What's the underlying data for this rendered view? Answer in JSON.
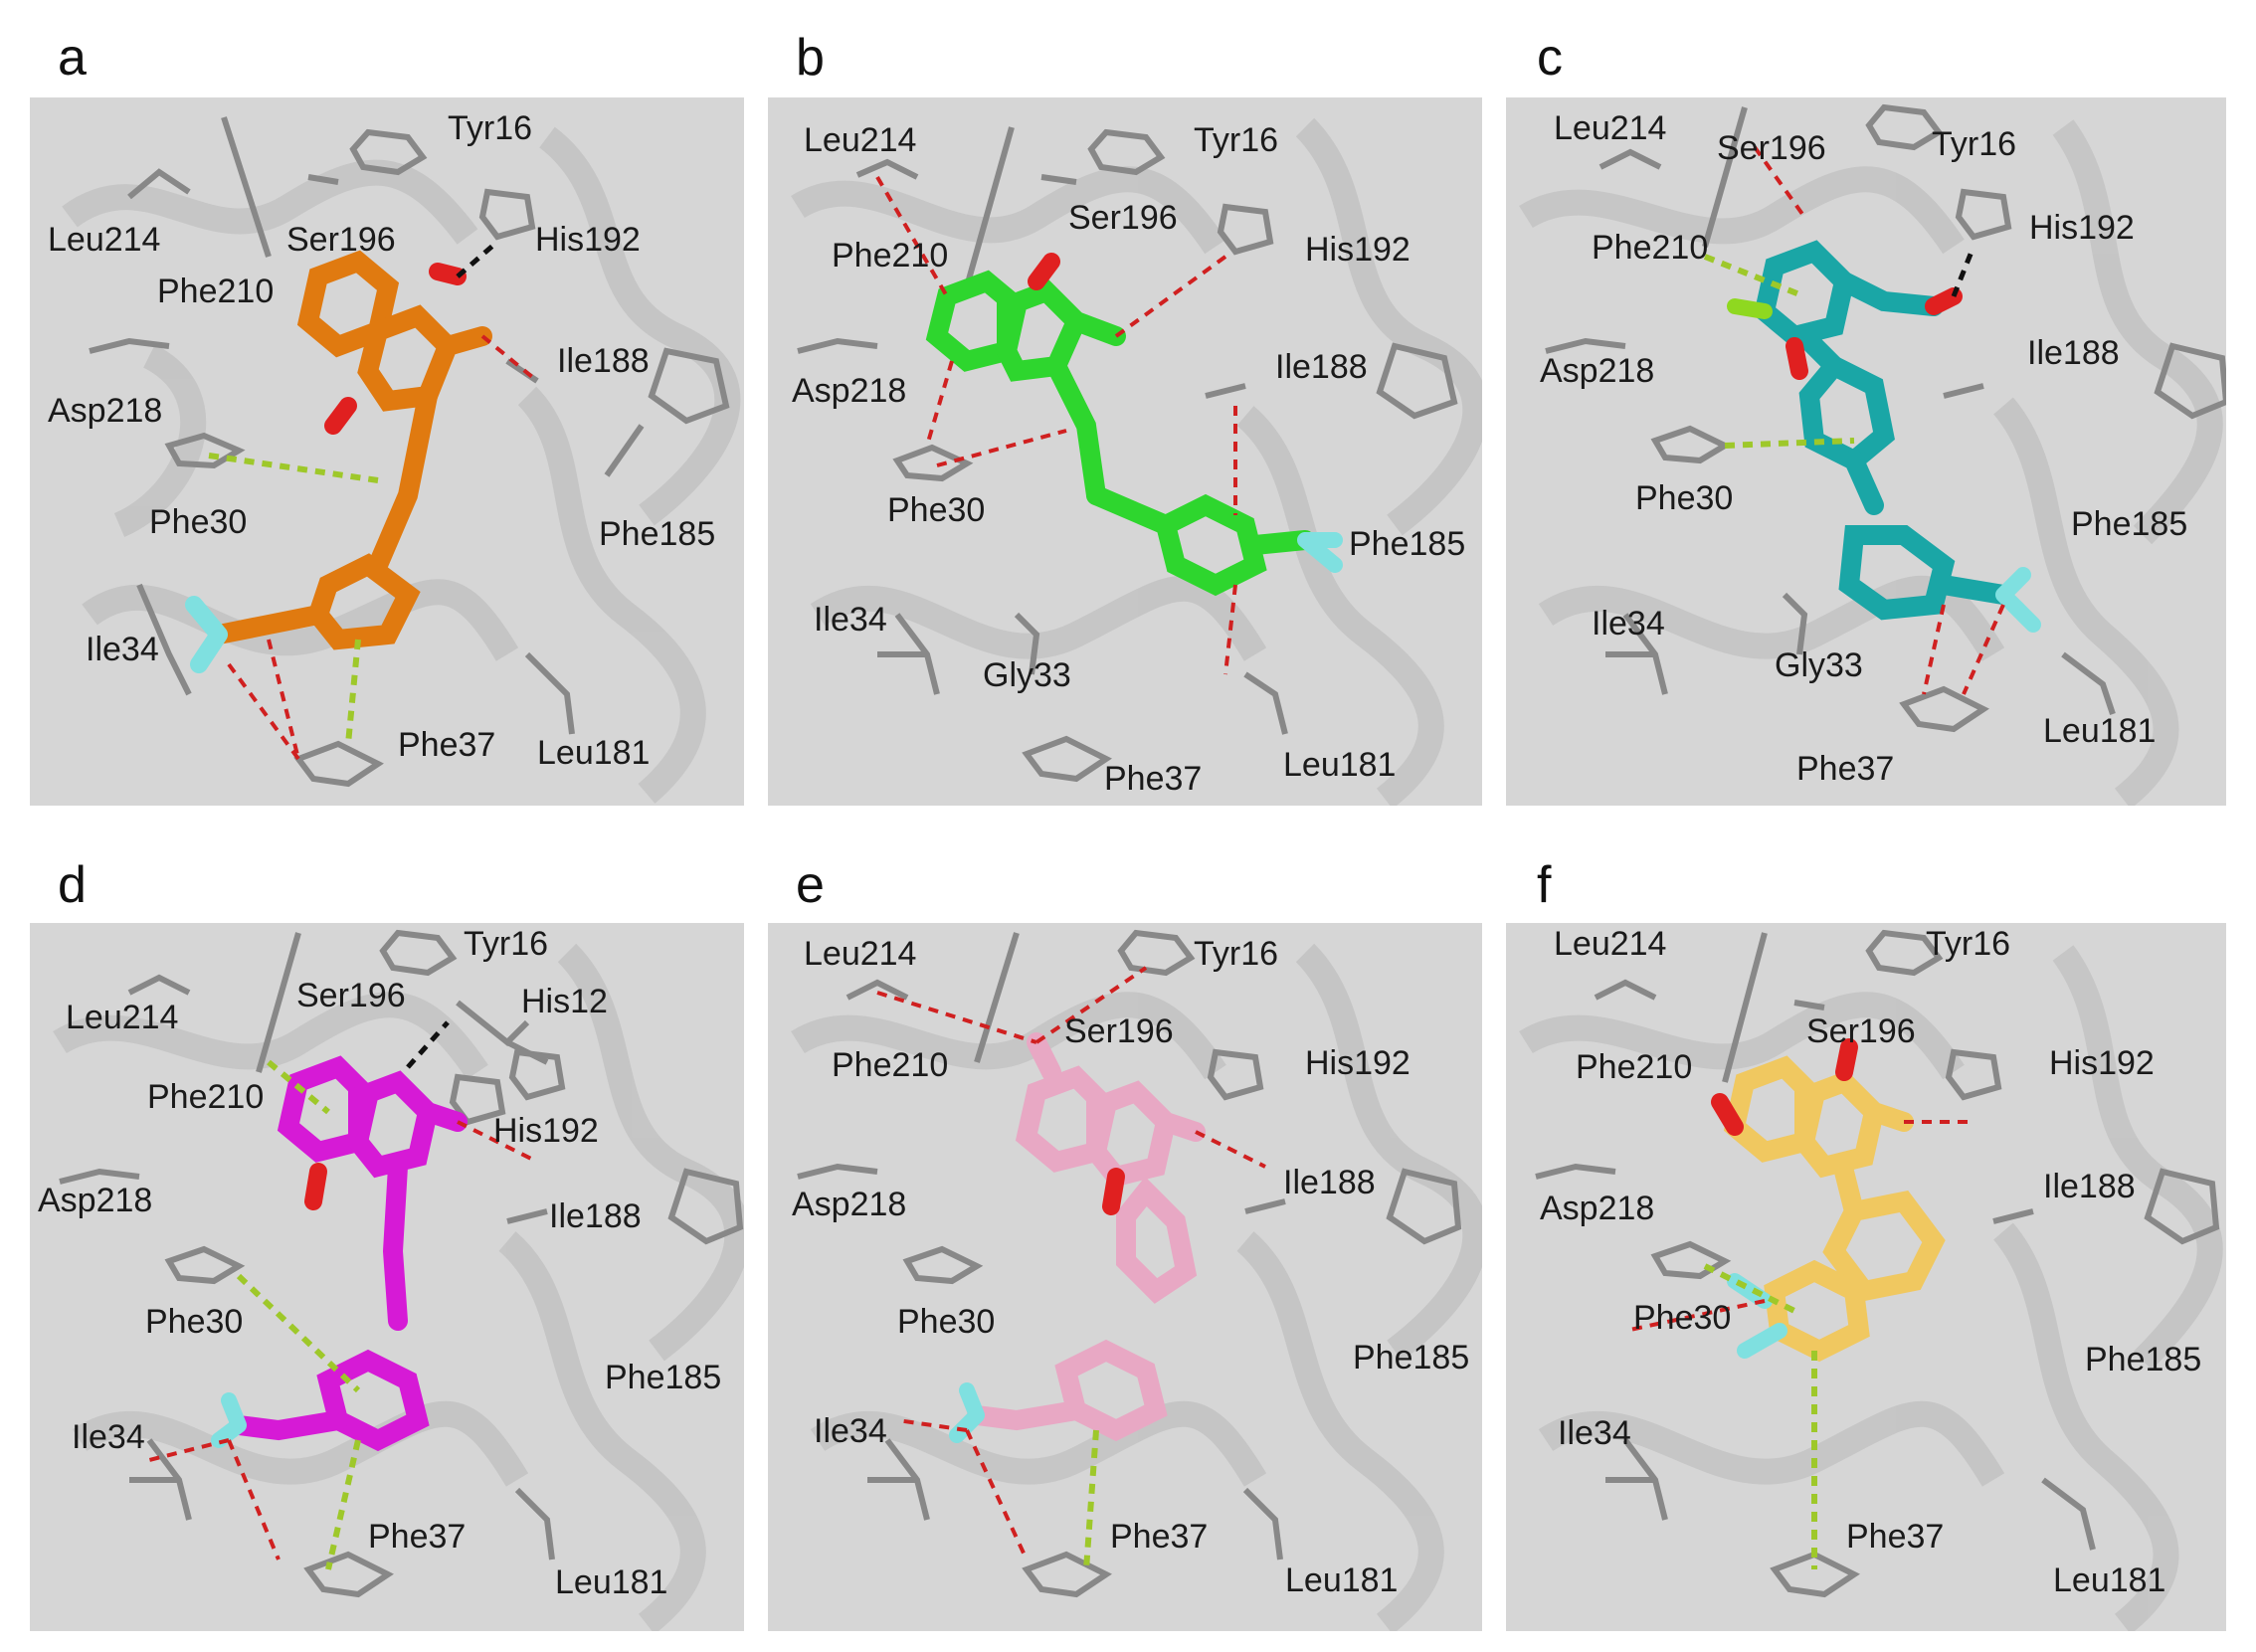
{
  "panels": [
    {
      "letter": "a",
      "ligand_color": "#e07a10",
      "residues": {
        "Tyr16": "Tyr16",
        "Leu214": "Leu214",
        "Ser196": "Ser196",
        "His192": "His192",
        "Phe210": "Phe210",
        "Ile188": "Ile188",
        "Asp218": "Asp218",
        "Phe30": "Phe30",
        "Phe185": "Phe185",
        "Ile34": "Ile34",
        "Phe37": "Phe37",
        "Leu181": "Leu181"
      }
    },
    {
      "letter": "b",
      "ligand_color": "#2ed62e",
      "residues": {
        "Leu214": "Leu214",
        "Tyr16": "Tyr16",
        "Ser196": "Ser196",
        "Phe210": "Phe210",
        "His192": "His192",
        "Ile188": "Ile188",
        "Asp218": "Asp218",
        "Phe30": "Phe30",
        "Phe185": "Phe185",
        "Ile34": "Ile34",
        "Gly33": "Gly33",
        "Leu181": "Leu181",
        "Phe37": "Phe37"
      }
    },
    {
      "letter": "c",
      "ligand_color": "#1aa6a6",
      "residues": {
        "Leu214": "Leu214",
        "Ser196": "Ser196",
        "Tyr16": "Tyr16",
        "His192": "His192",
        "Phe210": "Phe210",
        "Ile188": "Ile188",
        "Asp218": "Asp218",
        "Phe30": "Phe30",
        "Phe185": "Phe185",
        "Ile34": "Ile34",
        "Gly33": "Gly33",
        "Leu181": "Leu181",
        "Phe37": "Phe37"
      }
    },
    {
      "letter": "d",
      "ligand_color": "#d61ad6",
      "residues": {
        "Tyr16": "Tyr16",
        "Ser196": "Ser196",
        "His12": "His12",
        "Leu214": "Leu214",
        "Phe210": "Phe210",
        "His192": "His192",
        "Asp218": "Asp218",
        "Ile188": "Ile188",
        "Phe30": "Phe30",
        "Phe185": "Phe185",
        "Ile34": "Ile34",
        "Phe37": "Phe37",
        "Leu181": "Leu181"
      }
    },
    {
      "letter": "e",
      "ligand_color": "#e8a8c4",
      "residues": {
        "Leu214": "Leu214",
        "Tyr16": "Tyr16",
        "Ser196": "Ser196",
        "Phe210": "Phe210",
        "His192": "His192",
        "Ile188": "Ile188",
        "Asp218": "Asp218",
        "Phe30": "Phe30",
        "Phe185": "Phe185",
        "Ile34": "Ile34",
        "Phe37": "Phe37",
        "Leu181": "Leu181"
      }
    },
    {
      "letter": "f",
      "ligand_color": "#f0c860",
      "residues": {
        "Leu214": "Leu214",
        "Tyr16": "Tyr16",
        "Ser196": "Ser196",
        "Phe210": "Phe210",
        "His192": "His192",
        "Ile188": "Ile188",
        "Asp218": "Asp218",
        "Phe30": "Phe30",
        "Phe185": "Phe185",
        "Ile34": "Ile34",
        "Phe37": "Phe37",
        "Leu181": "Leu181"
      }
    }
  ]
}
